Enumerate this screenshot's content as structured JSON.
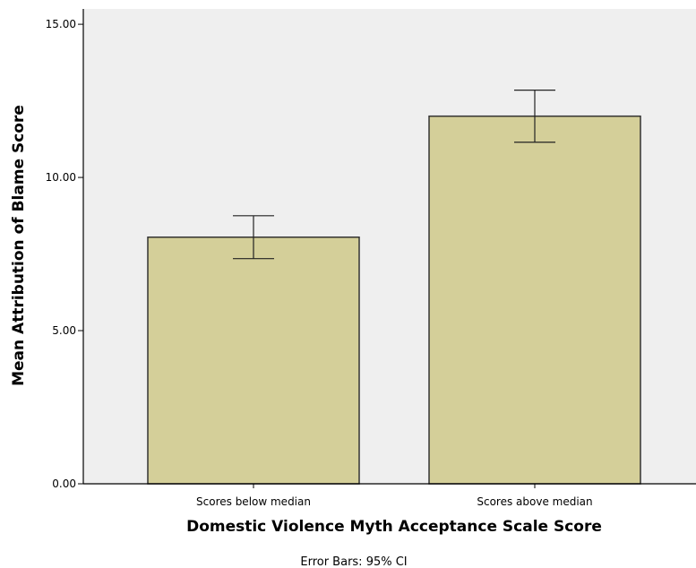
{
  "chart_data": {
    "type": "bar",
    "title": "",
    "xlabel": "Domestic Violence Myth Acceptance Scale Score",
    "ylabel": "Mean Attribution of Blame Score",
    "categories": [
      "Scores below median",
      "Scores above median"
    ],
    "values": [
      8.05,
      12.0
    ],
    "error_bars": {
      "lower": [
        7.35,
        11.15
      ],
      "upper": [
        8.75,
        12.85
      ]
    },
    "ylim": [
      0,
      15.5
    ],
    "yticks": [
      0,
      5,
      10,
      15
    ],
    "ytick_labels": [
      "0.00",
      "5.00",
      "10.00",
      "15.00"
    ],
    "grid": false,
    "footnote": "Error Bars: 95% CI",
    "colors": {
      "plot_background": "#efefef",
      "bar_fill": "#d4cf99",
      "bar_stroke": "#333333",
      "axis": "#000000"
    }
  }
}
